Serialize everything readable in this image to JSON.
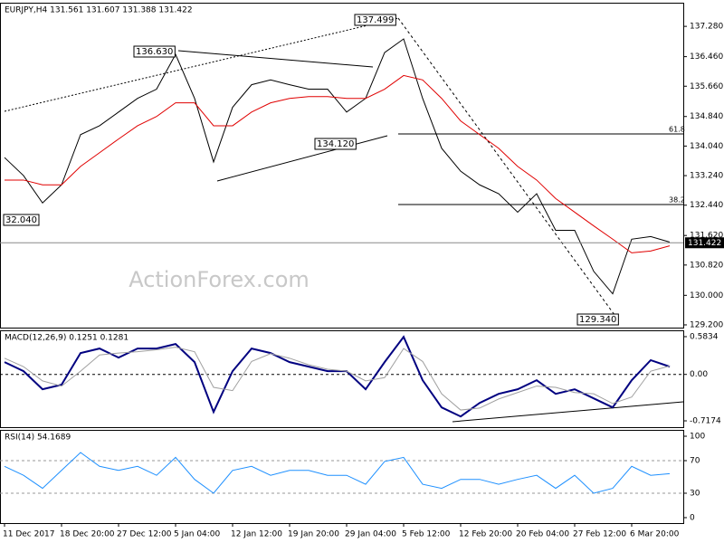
{
  "chart_data": [
    {
      "type": "line",
      "title": "EURJPY,H4 131.561 131.607 131.388 131.422",
      "watermark": "ActionForex.com",
      "annotations": [
        "137.499",
        "136.630",
        "134.120",
        "32.040",
        "129.340",
        "61.8",
        "38.2"
      ],
      "last_price": {
        "value": 131.422,
        "label": "131.422"
      },
      "xlim": [
        0,
        35
      ],
      "ylim": [
        129.126,
        137.92
      ],
      "yticks": [
        {
          "value": 137.28,
          "label": "137.280"
        },
        {
          "value": 136.46,
          "label": "136.460"
        },
        {
          "value": 135.66,
          "label": "135.660"
        },
        {
          "value": 134.84,
          "label": "134.840"
        },
        {
          "value": 134.04,
          "label": "134.040"
        },
        {
          "value": 133.24,
          "label": "133.240"
        },
        {
          "value": 132.44,
          "label": "132.440"
        },
        {
          "value": 131.62,
          "label": "131.620"
        },
        {
          "value": 130.82,
          "label": "130.820"
        },
        {
          "value": 130.0,
          "label": "130.000"
        },
        {
          "value": 129.2,
          "label": "129.200"
        }
      ],
      "series": [
        {
          "color": "#000000",
          "values": [
            133.73,
            133.24,
            132.5,
            132.99,
            134.35,
            134.59,
            134.96,
            135.33,
            135.58,
            136.52,
            135.33,
            133.61,
            135.09,
            135.7,
            135.83,
            135.7,
            135.58,
            135.58,
            134.96,
            135.33,
            136.57,
            136.94,
            135.33,
            133.98,
            133.36,
            132.99,
            132.75,
            132.25,
            132.75,
            131.76,
            131.76,
            130.65,
            130.04,
            131.52,
            131.59,
            131.44
          ]
        },
        {
          "color": "#e00000",
          "values": [
            133.12,
            133.12,
            132.99,
            132.99,
            133.49,
            133.86,
            134.23,
            134.59,
            134.84,
            135.21,
            135.21,
            134.59,
            134.59,
            134.96,
            135.21,
            135.33,
            135.38,
            135.38,
            135.33,
            135.33,
            135.58,
            135.95,
            135.83,
            135.33,
            134.72,
            134.35,
            133.98,
            133.49,
            133.12,
            132.62,
            132.25,
            131.88,
            131.52,
            131.15,
            131.2,
            131.34
          ]
        }
      ]
    },
    {
      "type": "line",
      "title": "MACD(12,26,9) 0.1251 0.1281",
      "zero_line": true,
      "xlim": [
        0,
        35
      ],
      "ylim": [
        -0.815,
        0.681
      ],
      "yticks": [
        0.5834,
        {
          "value": 0,
          "label": "0.00"
        },
        -0.7174
      ],
      "series": [
        {
          "color": "#000080",
          "width": 2,
          "values": [
            0.19,
            0.05,
            -0.23,
            -0.16,
            0.33,
            0.4,
            0.26,
            0.4,
            0.4,
            0.47,
            0.19,
            -0.58,
            0.05,
            0.4,
            0.33,
            0.19,
            0.12,
            0.05,
            0.05,
            -0.23,
            0.19,
            0.58,
            -0.09,
            -0.51,
            -0.65,
            -0.44,
            -0.3,
            -0.23,
            -0.09,
            -0.3,
            -0.23,
            -0.37,
            -0.51,
            -0.09,
            0.22,
            0.12
          ]
        },
        {
          "color": "#a0a0a0",
          "width": 1,
          "values": [
            0.25,
            0.12,
            -0.1,
            -0.18,
            0.05,
            0.3,
            0.33,
            0.35,
            0.38,
            0.42,
            0.35,
            -0.2,
            -0.25,
            0.2,
            0.32,
            0.25,
            0.15,
            0.08,
            0.05,
            -0.1,
            -0.05,
            0.4,
            0.2,
            -0.3,
            -0.55,
            -0.52,
            -0.38,
            -0.28,
            -0.18,
            -0.2,
            -0.28,
            -0.3,
            -0.45,
            -0.35,
            0.05,
            0.13
          ]
        }
      ]
    },
    {
      "type": "line",
      "title": "RSI(14) 54.1689",
      "levels": [
        70,
        30
      ],
      "xlim": [
        0,
        35
      ],
      "ylim": [
        -6.7,
        107.8
      ],
      "yticks": [
        100,
        70,
        30,
        0
      ],
      "xticks": [
        {
          "value": 0,
          "label": "11 Dec 2017"
        },
        {
          "value": 3,
          "label": "18 Dec 20:00"
        },
        {
          "value": 6,
          "label": "27 Dec 12:00"
        },
        {
          "value": 9,
          "label": "5 Jan 04:00"
        },
        {
          "value": 12,
          "label": "12 Jan 12:00"
        },
        {
          "value": 15,
          "label": "19 Jan 20:00"
        },
        {
          "value": 18,
          "label": "29 Jan 04:00"
        },
        {
          "value": 21,
          "label": "5 Feb 12:00"
        },
        {
          "value": 24,
          "label": "12 Feb 20:00"
        },
        {
          "value": 27,
          "label": "20 Feb 04:00"
        },
        {
          "value": 30,
          "label": "27 Feb 12:00"
        },
        {
          "value": 33,
          "label": "6 Mar 20:00"
        }
      ],
      "series": [
        {
          "color": "#1e90ff",
          "width": 1,
          "values": [
            63,
            52,
            36,
            58,
            80,
            63,
            58,
            63,
            52,
            74,
            47,
            30,
            58,
            63,
            52,
            58,
            58,
            52,
            52,
            41,
            69,
            74,
            41,
            36,
            47,
            47,
            41,
            47,
            52,
            36,
            52,
            30,
            36,
            63,
            52,
            54
          ]
        }
      ]
    }
  ]
}
